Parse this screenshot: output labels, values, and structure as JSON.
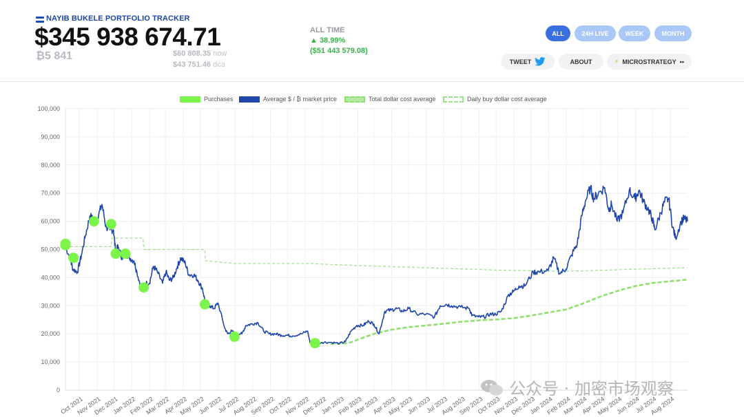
{
  "header": {
    "app_title": "NAYIB BUKELE PORTFOLIO TRACKER",
    "portfolio_value": "$345 938 674.71",
    "btc_amount": "₿5 841",
    "now_price": "$60 808.35",
    "now_suffix": " now",
    "dca_price": "$43 751.46",
    "dca_suffix": " dca",
    "alltime_label": "ALL TIME",
    "alltime_pct": "▲ 38.99%",
    "alltime_usd": "($51 443 579.08)"
  },
  "range_tabs": [
    "ALL",
    "24H LIVE",
    "WEEK",
    "MONTH"
  ],
  "active_range": "ALL",
  "actions": {
    "tweet": "TWEET",
    "about": "ABOUT",
    "microstrategy": "MICROSTRATEGY",
    "micro_prefix": "⚡",
    "micro_suffix": "••"
  },
  "colors": {
    "price_line": "#1f46a8",
    "purchase_dot": "#7cf54a",
    "total_dca": "#8fe06a",
    "daily_dca": "#9be38c",
    "active_tab": "#3b6fe0",
    "inactive_tab": "#a9c8f7",
    "positive": "#37b24d"
  },
  "watermark": "公众号 · 加密市场观察",
  "chart_data": {
    "type": "line",
    "legend": [
      "Purchases",
      "Average $ / ₿ market price",
      "Total dollar cost average",
      "Daily buy dollar cost average"
    ],
    "legend_position": "top-center",
    "grid": true,
    "ylim": [
      0,
      100000
    ],
    "yticks": [
      0,
      10000,
      20000,
      30000,
      40000,
      50000,
      60000,
      70000,
      80000,
      90000,
      100000
    ],
    "ytick_labels": [
      "0",
      "10,000",
      "20,000",
      "30,000",
      "40,000",
      "50,000",
      "60,000",
      "70,000",
      "80,000",
      "90,000",
      "100,000"
    ],
    "xlim": [
      "2021-09-07",
      "2024-08-31"
    ],
    "xtick_labels": [
      "Oct 2021",
      "Nov 2021",
      "Dec 2021",
      "Jan 2022",
      "Feb 2022",
      "Mar 2022",
      "Apr 2022",
      "May 2022",
      "Jun 2022",
      "Jul 2022",
      "Aug 2022",
      "Sep 2022",
      "Oct 2022",
      "Nov 2022",
      "Dec 2022",
      "Jan 2023",
      "Feb 2023",
      "Mar 2023",
      "Apr 2023",
      "May 2023",
      "Jun 2023",
      "Jul 2023",
      "Aug 2023",
      "Sep 2023",
      "Oct 2023",
      "Nov 2023",
      "Dec 2023",
      "Jan 2024",
      "Feb 2024",
      "Mar 2024",
      "Apr 2024",
      "May 2024",
      "Jun 2024",
      "Jul 2024",
      "Aug 2024"
    ],
    "series": [
      {
        "name": "Average $ / ₿ market price",
        "x": [
          "2021-09-07",
          "2021-09-15",
          "2021-09-20",
          "2021-09-28",
          "2021-10-05",
          "2021-10-12",
          "2021-10-20",
          "2021-10-27",
          "2021-11-02",
          "2021-11-10",
          "2021-11-17",
          "2021-11-24",
          "2021-11-30",
          "2021-12-04",
          "2021-12-08",
          "2021-12-15",
          "2021-12-21",
          "2021-12-28",
          "2022-01-05",
          "2022-01-10",
          "2022-01-18",
          "2022-01-24",
          "2022-02-01",
          "2022-02-08",
          "2022-02-15",
          "2022-02-24",
          "2022-03-02",
          "2022-03-08",
          "2022-03-15",
          "2022-03-22",
          "2022-03-28",
          "2022-04-05",
          "2022-04-11",
          "2022-04-20",
          "2022-04-27",
          "2022-05-05",
          "2022-05-11",
          "2022-05-18",
          "2022-05-25",
          "2022-06-01",
          "2022-06-13",
          "2022-06-18",
          "2022-06-25",
          "2022-07-01",
          "2022-07-13",
          "2022-07-20",
          "2022-07-30",
          "2022-08-10",
          "2022-08-20",
          "2022-08-30",
          "2022-09-10",
          "2022-09-20",
          "2022-09-30",
          "2022-10-10",
          "2022-10-25",
          "2022-11-05",
          "2022-11-09",
          "2022-11-20",
          "2022-11-30",
          "2022-12-15",
          "2022-12-31",
          "2023-01-10",
          "2023-01-20",
          "2023-01-30",
          "2023-02-10",
          "2023-02-20",
          "2023-03-01",
          "2023-03-10",
          "2023-03-20",
          "2023-03-31",
          "2023-04-10",
          "2023-04-20",
          "2023-05-01",
          "2023-05-15",
          "2023-05-31",
          "2023-06-15",
          "2023-06-25",
          "2023-07-05",
          "2023-07-15",
          "2023-07-31",
          "2023-08-15",
          "2023-08-20",
          "2023-08-31",
          "2023-09-10",
          "2023-09-20",
          "2023-09-30",
          "2023-10-10",
          "2023-10-23",
          "2023-10-31",
          "2023-11-10",
          "2023-11-20",
          "2023-12-05",
          "2023-12-15",
          "2023-12-31",
          "2024-01-10",
          "2024-01-20",
          "2024-01-31",
          "2024-02-10",
          "2024-02-20",
          "2024-02-28",
          "2024-03-05",
          "2024-03-14",
          "2024-03-20",
          "2024-03-28",
          "2024-04-08",
          "2024-04-15",
          "2024-04-20",
          "2024-04-30",
          "2024-05-10",
          "2024-05-21",
          "2024-05-31",
          "2024-06-07",
          "2024-06-15",
          "2024-06-24",
          "2024-06-30",
          "2024-07-05",
          "2024-07-15",
          "2024-07-22",
          "2024-07-29",
          "2024-08-05",
          "2024-08-10",
          "2024-08-20",
          "2024-08-25",
          "2024-08-31"
        ],
        "y": [
          51000,
          47000,
          43000,
          42000,
          48000,
          55000,
          62000,
          60000,
          61000,
          66000,
          58000,
          57000,
          57000,
          49000,
          51000,
          47000,
          49000,
          47000,
          46000,
          42000,
          36000,
          38000,
          38000,
          44000,
          42000,
          38000,
          42000,
          39000,
          40000,
          44000,
          47000,
          45000,
          41000,
          41000,
          39000,
          36000,
          30000,
          30000,
          29000,
          31000,
          22000,
          20000,
          21000,
          20000,
          20000,
          23000,
          23500,
          24000,
          21000,
          20000,
          20000,
          19500,
          19500,
          19300,
          20000,
          21000,
          17000,
          16500,
          17000,
          17000,
          16600,
          17200,
          21000,
          23000,
          23000,
          24500,
          23500,
          20000,
          28000,
          28500,
          29000,
          28000,
          29000,
          27000,
          27000,
          26000,
          30000,
          30500,
          30000,
          29500,
          29000,
          26500,
          26000,
          26000,
          27000,
          27000,
          28000,
          34000,
          35000,
          37000,
          37000,
          42000,
          42000,
          42500,
          47000,
          41500,
          43000,
          48000,
          52000,
          62000,
          67000,
          72000,
          68000,
          70000,
          72000,
          64000,
          66000,
          60000,
          63000,
          71000,
          68000,
          71000,
          67000,
          64000,
          61000,
          57000,
          63000,
          67000,
          68000,
          58000,
          54000,
          60000,
          61000,
          60000
        ]
      },
      {
        "name": "Total dollar cost average",
        "x": [
          "2022-12-15",
          "2023-01-10",
          "2023-01-20",
          "2023-02-01",
          "2023-03-01",
          "2023-04-01",
          "2023-05-01",
          "2023-06-01",
          "2023-07-01",
          "2023-08-01",
          "2023-09-01",
          "2023-10-01",
          "2023-11-01",
          "2023-12-01",
          "2024-01-01",
          "2024-02-01",
          "2024-03-01",
          "2024-04-01",
          "2024-05-01",
          "2024-06-01",
          "2024-07-01",
          "2024-08-01",
          "2024-08-31"
        ],
        "y": [
          16500,
          16600,
          17000,
          18000,
          20000,
          21500,
          22400,
          23000,
          23600,
          24300,
          24800,
          25100,
          25600,
          26500,
          27600,
          28700,
          30800,
          33300,
          35300,
          37000,
          38100,
          38700,
          39300
        ]
      },
      {
        "name": "Daily buy dollar cost average",
        "x": [
          "2021-09-07",
          "2021-09-16",
          "2021-09-17",
          "2021-11-26",
          "2021-11-27",
          "2022-01-21",
          "2022-01-22",
          "2022-05-09",
          "2022-05-10",
          "2022-06-30",
          "2022-07-01",
          "2022-11-17",
          "2022-11-18",
          "2023-01-01",
          "2023-06-01",
          "2023-10-01",
          "2024-01-01",
          "2024-03-01",
          "2024-06-01",
          "2024-08-31"
        ],
        "y": [
          51000,
          51000,
          51000,
          51000,
          54000,
          54000,
          50000,
          50000,
          46000,
          45000,
          45000,
          45000,
          44900,
          44500,
          43500,
          42700,
          42300,
          42400,
          43000,
          43500
        ]
      }
    ],
    "purchases": [
      {
        "date": "2021-09-07",
        "price": 52000
      },
      {
        "date": "2021-09-07",
        "price": 51500
      },
      {
        "date": "2021-09-21",
        "price": 47000
      },
      {
        "date": "2021-10-27",
        "price": 60000
      },
      {
        "date": "2021-11-26",
        "price": 59000
      },
      {
        "date": "2021-12-04",
        "price": 48500
      },
      {
        "date": "2021-12-21",
        "price": 48500
      },
      {
        "date": "2022-01-22",
        "price": 36500
      },
      {
        "date": "2022-05-09",
        "price": 30500
      },
      {
        "date": "2022-06-30",
        "price": 19000
      },
      {
        "date": "2022-11-18",
        "price": 16700
      }
    ]
  }
}
